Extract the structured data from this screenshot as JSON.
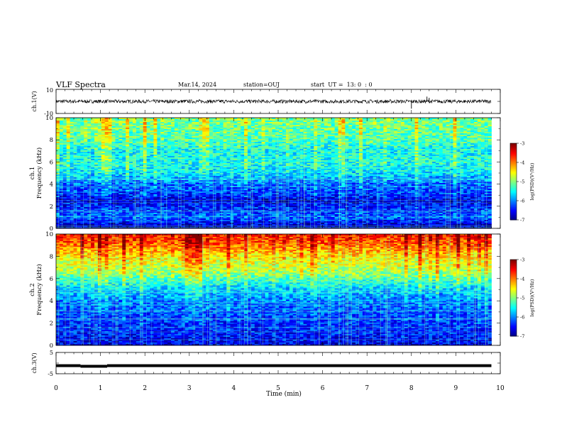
{
  "header": {
    "title": "VLF Spectra",
    "date": "Mar.14, 2024",
    "station": "station=OUJ",
    "start": "start  UT =  13: 0  : 0"
  },
  "chart_data": [
    {
      "type": "line",
      "name": "ch1-waveform",
      "ylabel": "ch.1(V)",
      "ylim": [
        -10,
        10
      ],
      "yticks": [
        "10",
        "-10"
      ],
      "xlim": [
        0,
        10
      ],
      "baseline": 0,
      "noise_amplitude": 1.5,
      "spikes": [
        {
          "x": 8.0,
          "y": -6
        },
        {
          "x": 8.35,
          "y": 4
        },
        {
          "x": 8.4,
          "y": 3
        }
      ]
    },
    {
      "type": "heatmap",
      "name": "ch1-spectrogram",
      "ylabel": "Frequency (kHz)",
      "channel_label": "ch.1",
      "ylim": [
        0,
        10
      ],
      "yticks": [
        "0",
        "2",
        "4",
        "6",
        "8",
        "10"
      ],
      "xlim": [
        0,
        9.8
      ],
      "colorbar": {
        "label": "log(PSD)(V²/Hz)",
        "ticks": [
          "-3",
          "-4",
          "-5",
          "-6",
          "-7"
        ],
        "range": [
          -7,
          -3
        ]
      },
      "profile": [
        {
          "f": 0,
          "v": -7.0
        },
        {
          "f": 0.5,
          "v": -6.5
        },
        {
          "f": 1,
          "v": -6.1
        },
        {
          "f": 2,
          "v": -6.4
        },
        {
          "f": 2.5,
          "v": -6.7
        },
        {
          "f": 3,
          "v": -6.3
        },
        {
          "f": 4,
          "v": -6.1
        },
        {
          "f": 5,
          "v": -5.6
        },
        {
          "f": 6,
          "v": -5.4
        },
        {
          "f": 7,
          "v": -5.5
        },
        {
          "f": 8,
          "v": -5.2
        },
        {
          "f": 9,
          "v": -5.1
        },
        {
          "f": 10,
          "v": -5.0
        }
      ]
    },
    {
      "type": "heatmap",
      "name": "ch2-spectrogram",
      "ylabel": "Frequency (kHz)",
      "channel_label": "ch.2",
      "ylim": [
        0,
        10
      ],
      "yticks": [
        "0",
        "2",
        "4",
        "6",
        "8",
        "10"
      ],
      "xlim": [
        0,
        9.8
      ],
      "colorbar": {
        "label": "log(PSD)(V²/Hz)",
        "ticks": [
          "-3",
          "-4",
          "-5",
          "-6",
          "-7"
        ],
        "range": [
          -7,
          -3
        ]
      },
      "profile": [
        {
          "f": 0,
          "v": -6.6
        },
        {
          "f": 1,
          "v": -6.4
        },
        {
          "f": 2,
          "v": -6.3
        },
        {
          "f": 3,
          "v": -6.2
        },
        {
          "f": 4,
          "v": -6.0
        },
        {
          "f": 5,
          "v": -5.7
        },
        {
          "f": 5.8,
          "v": -5.3
        },
        {
          "f": 6.5,
          "v": -4.9
        },
        {
          "f": 7.5,
          "v": -4.6
        },
        {
          "f": 8.5,
          "v": -4.2
        },
        {
          "f": 9.3,
          "v": -3.8
        },
        {
          "f": 10,
          "v": -3.6
        }
      ]
    },
    {
      "type": "line",
      "name": "ch3-signal",
      "ylabel": "ch.3(V)",
      "ylim": [
        -5,
        5
      ],
      "yticks": [
        "5",
        "-5"
      ],
      "xlim": [
        0,
        10
      ],
      "segments": [
        {
          "x0": 0.0,
          "x1": 0.55,
          "y": -1.2
        },
        {
          "x0": 0.55,
          "x1": 1.15,
          "y": -1.5
        },
        {
          "x0": 1.15,
          "x1": 9.8,
          "y": -1.2
        }
      ]
    }
  ],
  "xaxis": {
    "label": "Time  (min)",
    "ticks": [
      "0",
      "1",
      "2",
      "3",
      "4",
      "5",
      "6",
      "7",
      "8",
      "9",
      "10"
    ],
    "range": [
      0,
      10
    ]
  }
}
